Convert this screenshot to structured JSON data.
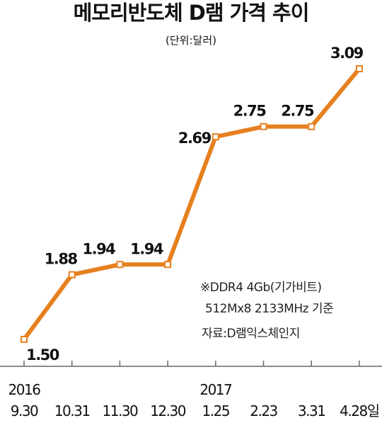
{
  "chart_data": {
    "type": "line",
    "title": "메모리반도체 D램 가격 추이",
    "subtitle": "(단위:달러)",
    "notes": [
      "※DDR4 4Gb(기가비트)",
      "512Mx8 2133MHz 기준",
      "자료:D램익스체인지"
    ],
    "categories": [
      "9.30",
      "10.31",
      "11.30",
      "12.30",
      "1.25",
      "2.23",
      "3.31",
      "4.28일"
    ],
    "years": [
      "2016",
      null,
      null,
      null,
      "2017",
      null,
      null,
      null
    ],
    "series": [
      {
        "color": "#e6801f",
        "values": [
          1.5,
          1.88,
          1.94,
          1.94,
          2.69,
          2.75,
          2.75,
          3.09
        ],
        "value_labels": [
          "1.50",
          "1.88",
          "1.94",
          "1.94",
          "2.69",
          "2.75",
          "2.75",
          "3.09"
        ]
      }
    ]
  }
}
